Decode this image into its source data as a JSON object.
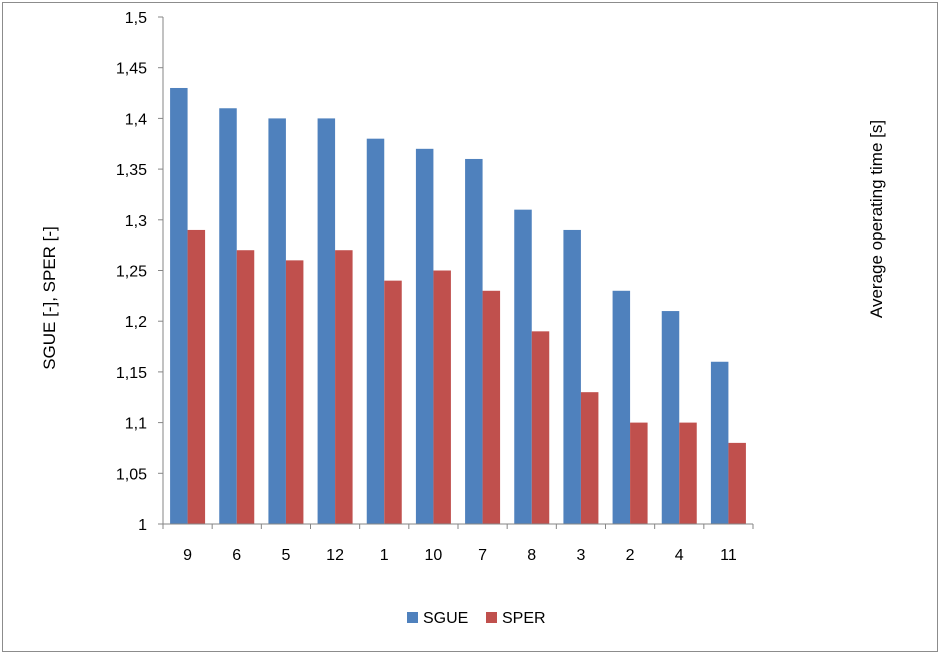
{
  "chart_data": {
    "type": "bar",
    "title": "",
    "xlabel": "",
    "ylabel": "SGUE [-],  SPER [-]",
    "ylabel_right": "Average operating time [s]",
    "ylim": [
      1,
      1.5
    ],
    "ytick_step": 0.05,
    "ytick_labels": [
      "1",
      "1,05",
      "1,1",
      "1,15",
      "1,2",
      "1,25",
      "1,3",
      "1,35",
      "1,4",
      "1,45",
      "1,5"
    ],
    "categories": [
      "9",
      "6",
      "5",
      "12",
      "1",
      "10",
      "7",
      "8",
      "3",
      "2",
      "4",
      "11"
    ],
    "series": [
      {
        "name": "SGUE",
        "color": "#4f81bd",
        "values": [
          1.43,
          1.41,
          1.4,
          1.4,
          1.38,
          1.37,
          1.36,
          1.31,
          1.29,
          1.23,
          1.21,
          1.16
        ]
      },
      {
        "name": "SPER",
        "color": "#c0504d",
        "values": [
          1.29,
          1.27,
          1.26,
          1.27,
          1.24,
          1.25,
          1.23,
          1.19,
          1.13,
          1.1,
          1.1,
          1.08
        ]
      }
    ],
    "grid": false,
    "legend_position": "bottom"
  }
}
